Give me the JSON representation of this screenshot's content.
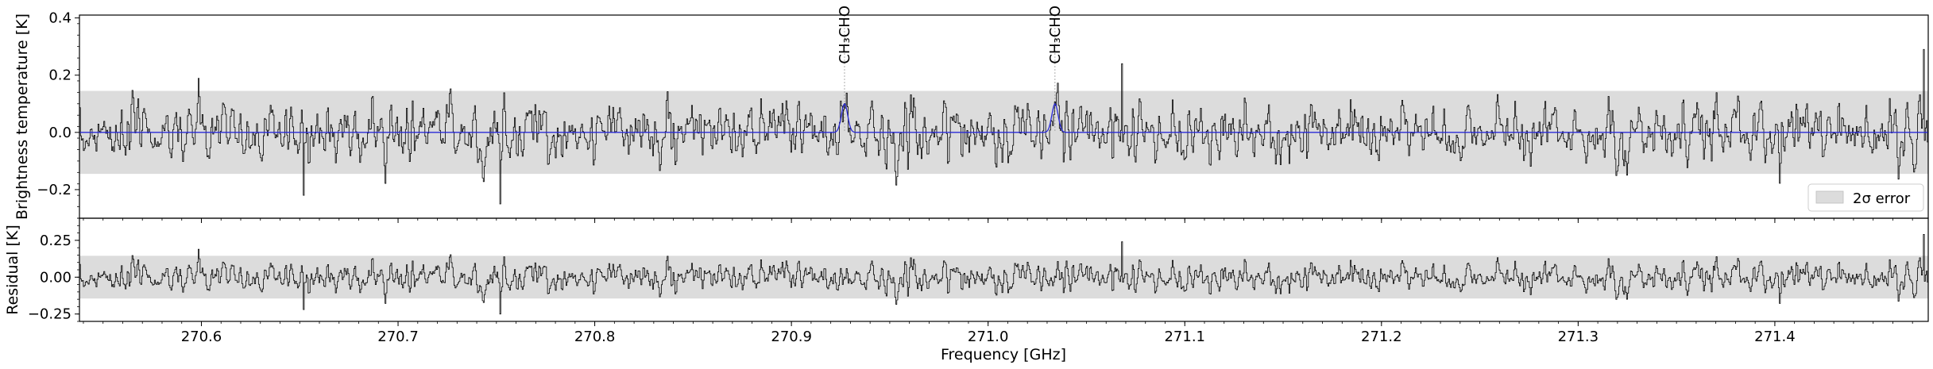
{
  "chart_data": [
    {
      "type": "line",
      "panel": "spectrum",
      "ylabel": "Brightness temperature [K]",
      "xlim": [
        270.538,
        271.478
      ],
      "ylim": [
        -0.3,
        0.41
      ],
      "yticks": [
        -0.2,
        0.0,
        0.2,
        0.4
      ],
      "ytick_labels": [
        "−0.2",
        "0.0",
        "0.2",
        "0.4"
      ],
      "error_band": [
        -0.145,
        0.145
      ],
      "legend": {
        "label": "2σ error",
        "placement": "lower-right"
      },
      "annotations": [
        {
          "label": "CH₃CHO",
          "x": 270.927
        },
        {
          "label": "CH₃CHO",
          "x": 271.034
        }
      ],
      "series": [
        {
          "role": "observed",
          "color": "#000000"
        },
        {
          "role": "model",
          "color": "#2a2ad6",
          "baseline": 0.0,
          "peaks": [
            {
              "x": 270.927,
              "height": 0.1
            },
            {
              "x": 271.034,
              "height": 0.1
            }
          ]
        }
      ],
      "notable_points": [
        {
          "x": 270.752,
          "y": -0.25
        },
        {
          "x": 270.652,
          "y": -0.22
        },
        {
          "x": 271.476,
          "y": 0.29
        },
        {
          "x": 271.068,
          "y": 0.24
        }
      ]
    },
    {
      "type": "line",
      "panel": "residual",
      "xlabel": "Frequency [GHz]",
      "ylabel": "Residual [K]",
      "xlim": [
        270.538,
        271.478
      ],
      "ylim": [
        -0.3,
        0.4
      ],
      "yticks": [
        -0.25,
        0.0,
        0.25
      ],
      "ytick_labels": [
        "−0.25",
        "0.00",
        "0.25"
      ],
      "xticks": [
        270.6,
        270.7,
        270.8,
        270.9,
        271.0,
        271.1,
        271.2,
        271.3,
        271.4
      ],
      "xtick_labels": [
        "270.6",
        "270.7",
        "270.8",
        "270.9",
        "271.0",
        "271.1",
        "271.2",
        "271.3",
        "271.4"
      ],
      "error_band": [
        -0.145,
        0.145
      ],
      "series": [
        {
          "role": "residual",
          "color": "#000000"
        }
      ]
    }
  ],
  "colors": {
    "band": "#dcdcdc",
    "model": "#2a2ad6",
    "data": "#000000"
  }
}
